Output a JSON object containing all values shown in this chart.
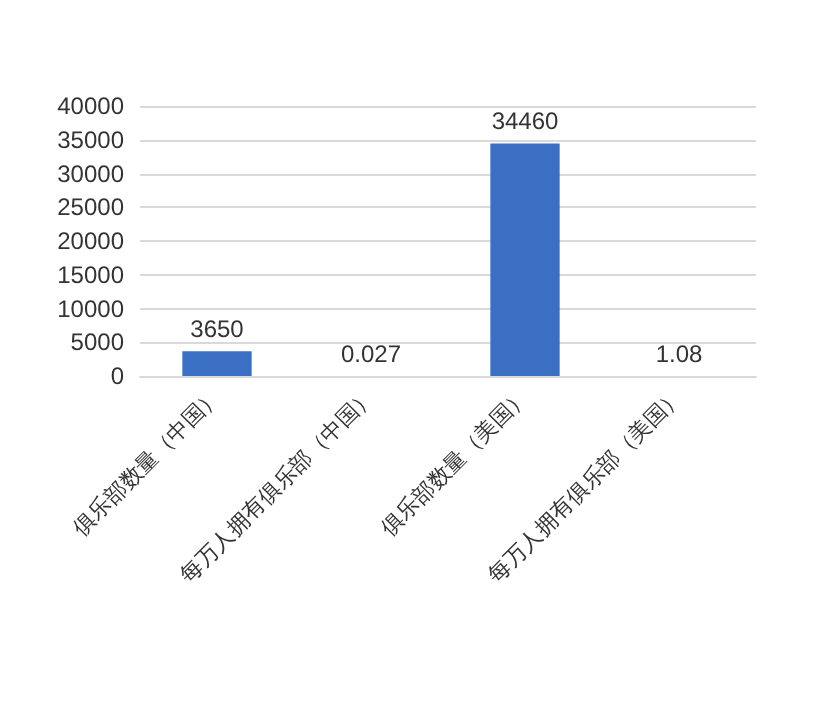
{
  "chart_data": {
    "type": "bar",
    "categories": [
      "俱乐部数量（中国）",
      "每万人拥有俱乐部（中国）",
      "俱乐部数量（美国）",
      "每万人拥有俱乐部（美国）"
    ],
    "values": [
      3650,
      0.027,
      34460,
      1.08
    ],
    "color": "#3a6fc4",
    "ylim": [
      0,
      40000
    ],
    "yticks": [
      0,
      5000,
      10000,
      15000,
      20000,
      25000,
      30000,
      35000,
      40000
    ],
    "grid": "y",
    "data_labels": true
  }
}
